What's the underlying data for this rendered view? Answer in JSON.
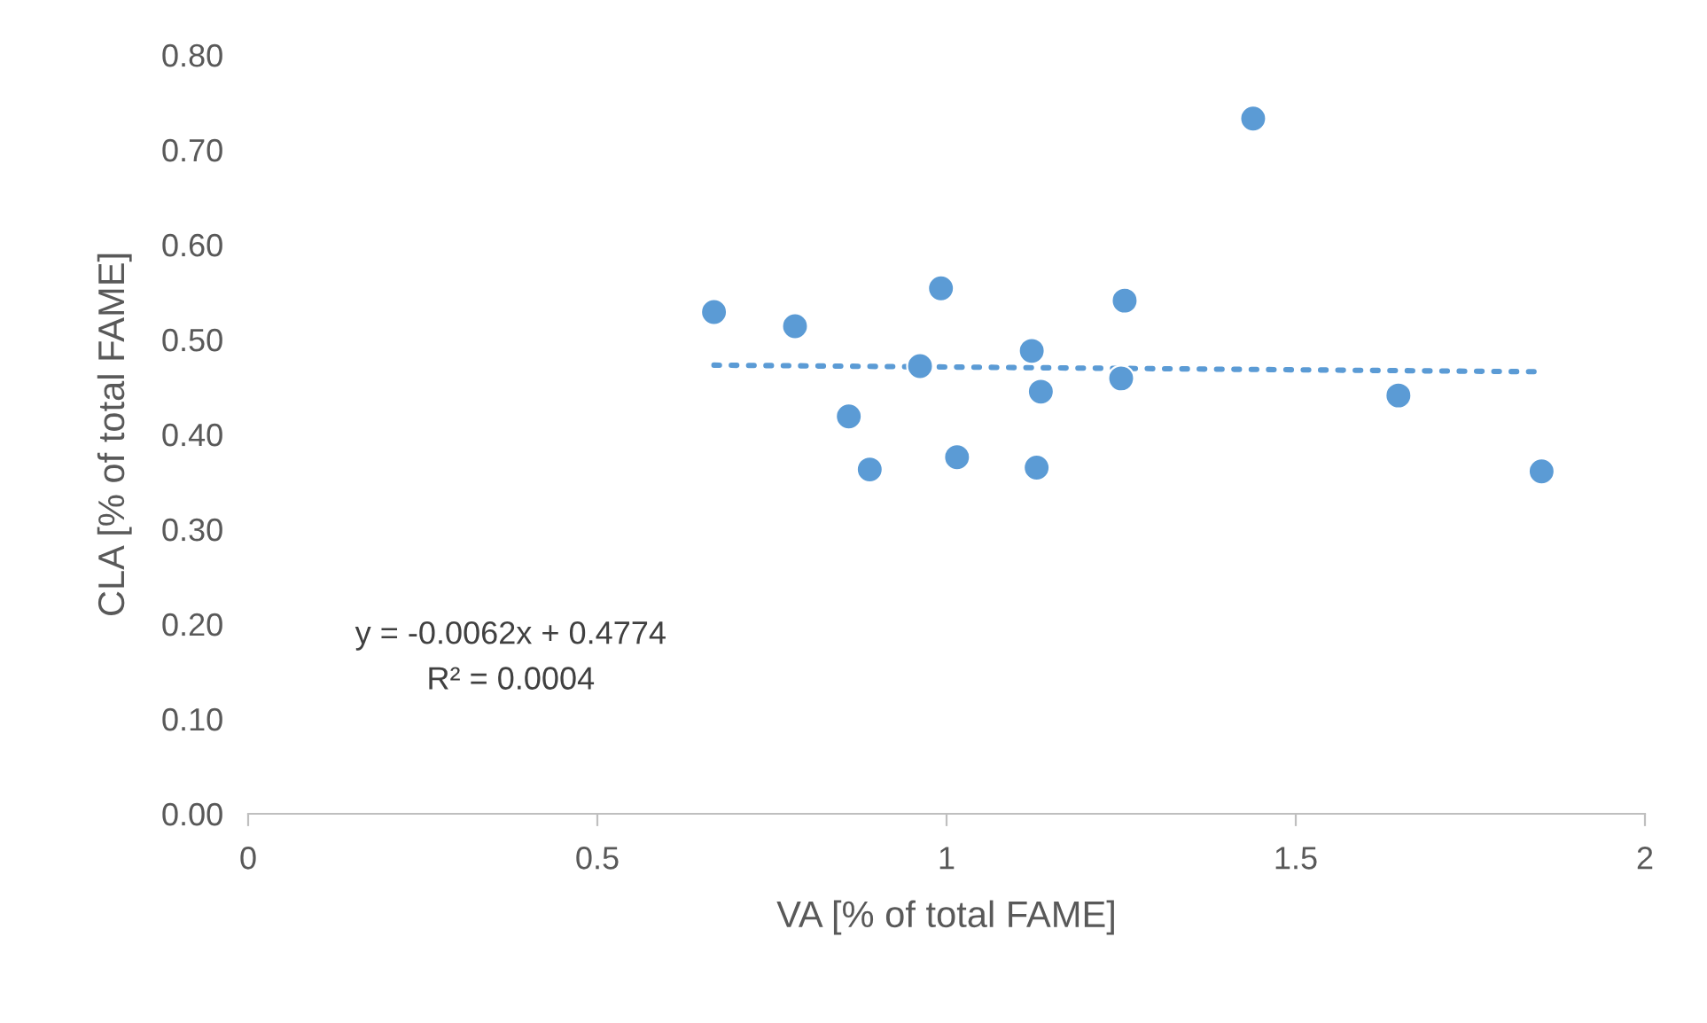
{
  "chart_data": {
    "type": "scatter",
    "xlabel": "VA [% of total FAME]",
    "ylabel": "CLA [% of total FAME]",
    "xlim": [
      0,
      2
    ],
    "xticks": [
      0,
      0.5,
      1,
      1.5,
      2
    ],
    "ylim": [
      0,
      0.8
    ],
    "yticks": [
      {
        "value": 0,
        "label": "0.00"
      },
      {
        "value": 0.1,
        "label": "0.10"
      },
      {
        "value": 0.2,
        "label": "0.20"
      },
      {
        "value": 0.3,
        "label": "0.30"
      },
      {
        "value": 0.4,
        "label": "0.40"
      },
      {
        "value": 0.5,
        "label": "0.50"
      },
      {
        "value": 0.6,
        "label": "0.60"
      },
      {
        "value": 0.7,
        "label": "0.70"
      },
      {
        "value": 0.8,
        "label": "0.80"
      }
    ],
    "grid": false,
    "legend": false,
    "series": [
      {
        "marker": "circle",
        "color": "#5b9bd5",
        "x": [
          0.667,
          0.783,
          0.992,
          0.962,
          0.86,
          0.89,
          1.015,
          1.122,
          1.135,
          1.129,
          1.255,
          1.25,
          1.439,
          1.647,
          1.852
        ],
        "values": [
          0.529,
          0.514,
          0.554,
          0.472,
          0.419,
          0.363,
          0.376,
          0.488,
          0.445,
          0.365,
          0.541,
          0.459,
          0.733,
          0.441,
          0.361
        ]
      },
      {
        "type": "line",
        "color": "#5b9bd5",
        "line_style": "dotted",
        "x": [
          0.667,
          1.852
        ],
        "values": [
          0.473,
          0.466
        ]
      }
    ],
    "annotations": [
      "y = -0.0062x + 0.4774",
      "R² = 0.0004"
    ]
  }
}
